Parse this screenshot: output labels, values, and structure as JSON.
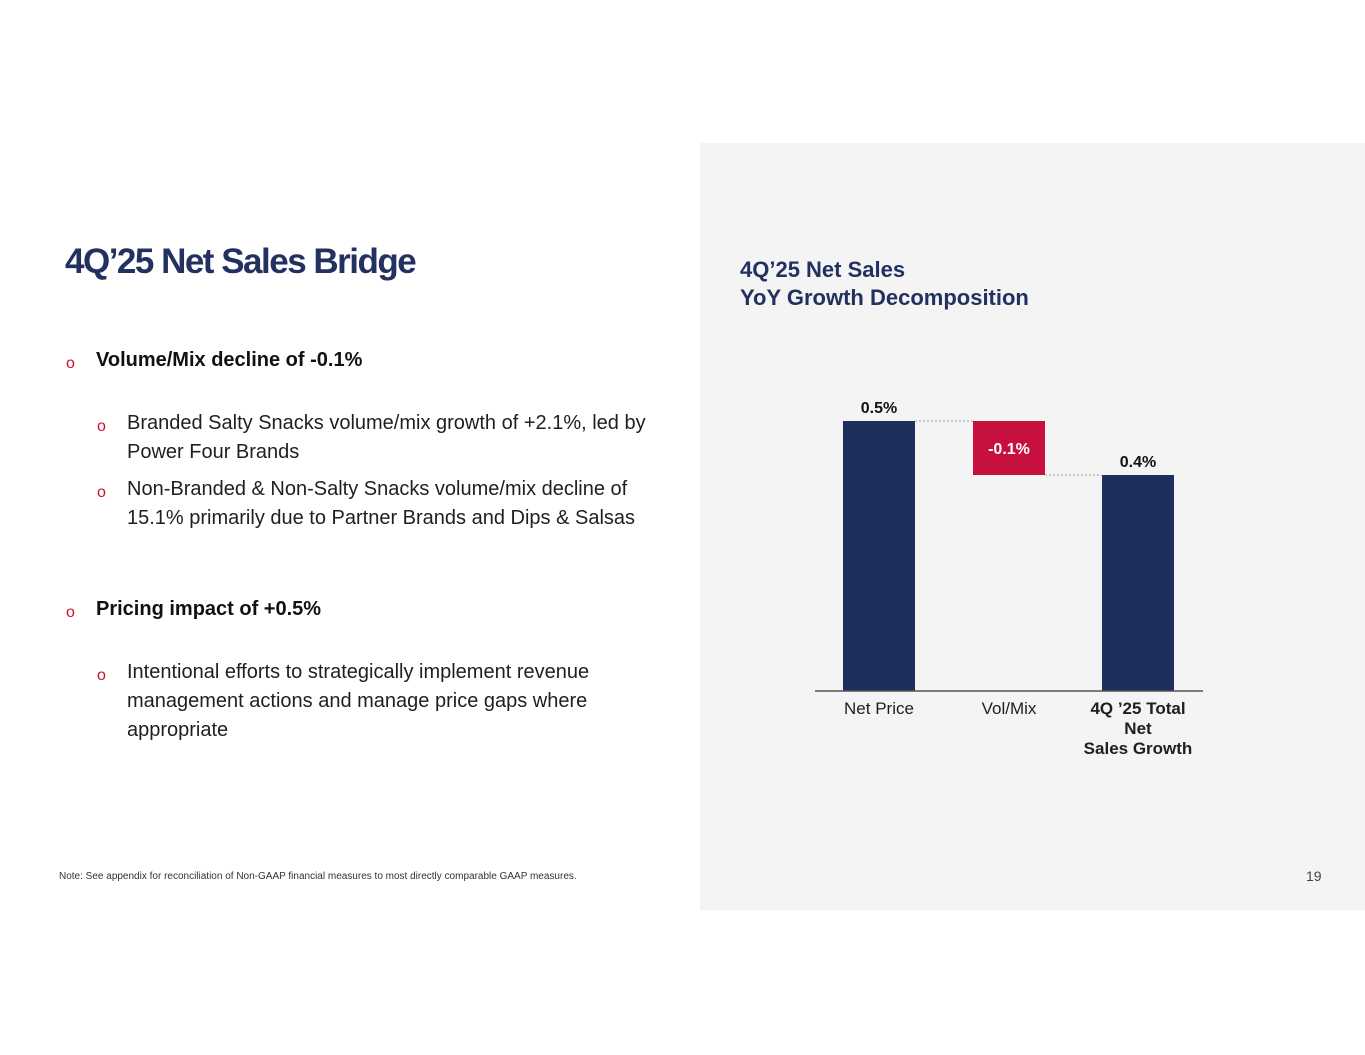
{
  "slide": {
    "title": "4Q’25 Net Sales Bridge",
    "bullet_marker": "o",
    "bullets": [
      {
        "text": "Volume/Mix decline of -0.1%",
        "sub": [
          "Branded Salty Snacks volume/mix growth of +2.1%, led by Power Four Brands",
          "Non-Branded & Non-Salty Snacks volume/mix decline of 15.1% primarily due to Partner Brands and Dips & Salsas"
        ]
      },
      {
        "text": "Pricing impact of +0.5%",
        "sub": [
          "Intentional efforts to strategically implement revenue management actions and manage price gaps where appropriate"
        ]
      }
    ],
    "note": "Note: See appendix for reconciliation of Non-GAAP financial measures to most directly comparable GAAP measures.",
    "page_number": "19"
  },
  "chart_data": {
    "type": "bar",
    "subtype": "waterfall",
    "title_lines": [
      "4Q’25 Net Sales",
      "YoY Growth Decomposition"
    ],
    "categories": [
      "Net Price",
      "Vol/Mix",
      "4Q ’25 Total Net Sales Growth"
    ],
    "category_label_lines": [
      [
        "Net Price"
      ],
      [
        "Vol/Mix"
      ],
      [
        "4Q ’25 Total",
        "Net",
        "Sales Growth"
      ]
    ],
    "category_bold": [
      false,
      false,
      true
    ],
    "values": [
      0.5,
      -0.1,
      0.4
    ],
    "kinds": [
      "increase",
      "decrease",
      "total"
    ],
    "data_labels": [
      "0.5%",
      "-0.1%",
      "0.4%"
    ],
    "ylim": [
      0,
      0.5
    ],
    "xlabel": "",
    "ylabel": "",
    "colors": {
      "increase": "#1e2f5e",
      "decrease": "#c8103e",
      "total": "#1e2f5e"
    },
    "label_colors": {
      "increase": "#111111",
      "decrease": "#ffffff",
      "total": "#111111"
    },
    "grid": false,
    "legend": "none"
  }
}
